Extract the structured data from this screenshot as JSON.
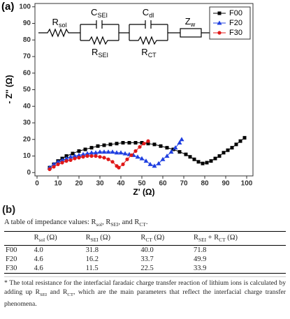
{
  "chart_data": {
    "type": "scatter",
    "panel_label": "(a)",
    "xlabel": "Z' (Ω)",
    "ylabel": "- Z'' (Ω)",
    "xlim": [
      -1,
      103
    ],
    "ylim": [
      -2,
      102
    ],
    "xticks": [
      0,
      10,
      20,
      30,
      40,
      50,
      60,
      70,
      80,
      90,
      100
    ],
    "yticks": [
      0,
      10,
      20,
      30,
      40,
      50,
      60,
      70,
      80,
      90,
      100
    ],
    "legend": "upper right",
    "series": [
      {
        "name": "F00",
        "color": "#000000",
        "marker": "square",
        "x": [
          6,
          8,
          10,
          12,
          14,
          17,
          20,
          23,
          26,
          29,
          32,
          35,
          38,
          41,
          44,
          47,
          50,
          53,
          56,
          59,
          62,
          65,
          68,
          71,
          73,
          75,
          77,
          79,
          81,
          83,
          85,
          87,
          89,
          91,
          93,
          95,
          97,
          99
        ],
        "values": [
          3,
          5,
          7,
          8.5,
          10,
          11.5,
          13,
          14,
          15,
          16,
          16.5,
          17,
          17.5,
          18,
          18,
          18,
          18,
          17.5,
          17,
          16,
          15,
          14,
          12.5,
          11,
          9.5,
          8,
          6.5,
          5.5,
          6,
          7,
          8.5,
          10,
          12,
          13.5,
          15,
          17,
          19,
          21
        ]
      },
      {
        "name": "F20",
        "color": "#1f3fe0",
        "marker": "triangle",
        "x": [
          6,
          8,
          10,
          12,
          14,
          16,
          18,
          20,
          22,
          24,
          26,
          28,
          30,
          32,
          34,
          36,
          38,
          40,
          42,
          44,
          46,
          48,
          50,
          52,
          54,
          56,
          58,
          60,
          62,
          64,
          66,
          68,
          69
        ],
        "values": [
          3,
          5,
          6.5,
          7.5,
          8.5,
          9.5,
          10,
          10.5,
          11,
          11.5,
          12,
          12,
          12.5,
          12.5,
          12.5,
          12.5,
          12,
          12,
          11.5,
          11,
          10.5,
          9.5,
          8.5,
          7,
          5,
          4,
          5.5,
          8,
          10,
          12.5,
          15,
          18,
          20
        ]
      },
      {
        "name": "F30",
        "color": "#e01818",
        "marker": "circle",
        "x": [
          6,
          8,
          10,
          12,
          14,
          16,
          18,
          20,
          22,
          24,
          26,
          28,
          30,
          32,
          34,
          36,
          38,
          39,
          41,
          43,
          45,
          47,
          49,
          51,
          53
        ],
        "values": [
          2,
          3.5,
          5,
          6,
          7,
          7.5,
          8.5,
          9,
          9.5,
          10,
          10,
          10,
          9.5,
          9,
          8,
          6.5,
          4,
          3,
          5,
          8,
          10.5,
          13,
          15.5,
          17.5,
          19
        ]
      }
    ]
  },
  "circuit": {
    "labels": [
      [
        {
          "t": "R"
        },
        {
          "sub": "sol"
        }
      ],
      [
        {
          "t": "C"
        },
        {
          "sub": "SEI"
        }
      ],
      [
        {
          "t": "R"
        },
        {
          "sub": "SEI"
        }
      ],
      [
        {
          "t": "C"
        },
        {
          "sub": "dl"
        }
      ],
      [
        {
          "t": "R"
        },
        {
          "sub": "CT"
        }
      ],
      [
        {
          "t": "Z"
        },
        {
          "sub": "w"
        }
      ]
    ]
  },
  "table": {
    "panel_label": "(b)",
    "caption": [
      {
        "t": "A table of impedance values: R"
      },
      {
        "sub": "sol"
      },
      {
        "t": ", R"
      },
      {
        "sub": "SEI"
      },
      {
        "t": ", and R"
      },
      {
        "sub": "CT"
      },
      {
        "t": "."
      }
    ],
    "header": [
      [
        {
          "t": "R"
        },
        {
          "sub": "sol"
        },
        {
          "t": " (Ω)"
        }
      ],
      [
        {
          "t": "R"
        },
        {
          "sub": "SEI"
        },
        {
          "t": " (Ω)"
        }
      ],
      [
        {
          "t": "R"
        },
        {
          "sub": "CT"
        },
        {
          "t": " (Ω)"
        }
      ],
      [
        {
          "t": "R"
        },
        {
          "sub": "SEI"
        },
        {
          "t": " + R"
        },
        {
          "sub": "CT"
        },
        {
          "t": " (Ω)"
        }
      ]
    ],
    "rows": [
      [
        "F00",
        "4.0",
        "31.8",
        "40.0",
        "71.8"
      ],
      [
        "F20",
        "4.6",
        "16.2",
        "33.7",
        "49.9"
      ],
      [
        "F30",
        "4.6",
        "11.5",
        "22.5",
        "33.9"
      ]
    ],
    "footnote": [
      {
        "t": "* The total resistance for the interfacial faradaic charge transfer reaction of lithium ions is calculated by adding up R"
      },
      {
        "sub": "SEI"
      },
      {
        "t": " and R"
      },
      {
        "sub": "CT"
      },
      {
        "t": ", which are the main parameters that reflect the interfacial charge transfer phenomena."
      }
    ]
  }
}
